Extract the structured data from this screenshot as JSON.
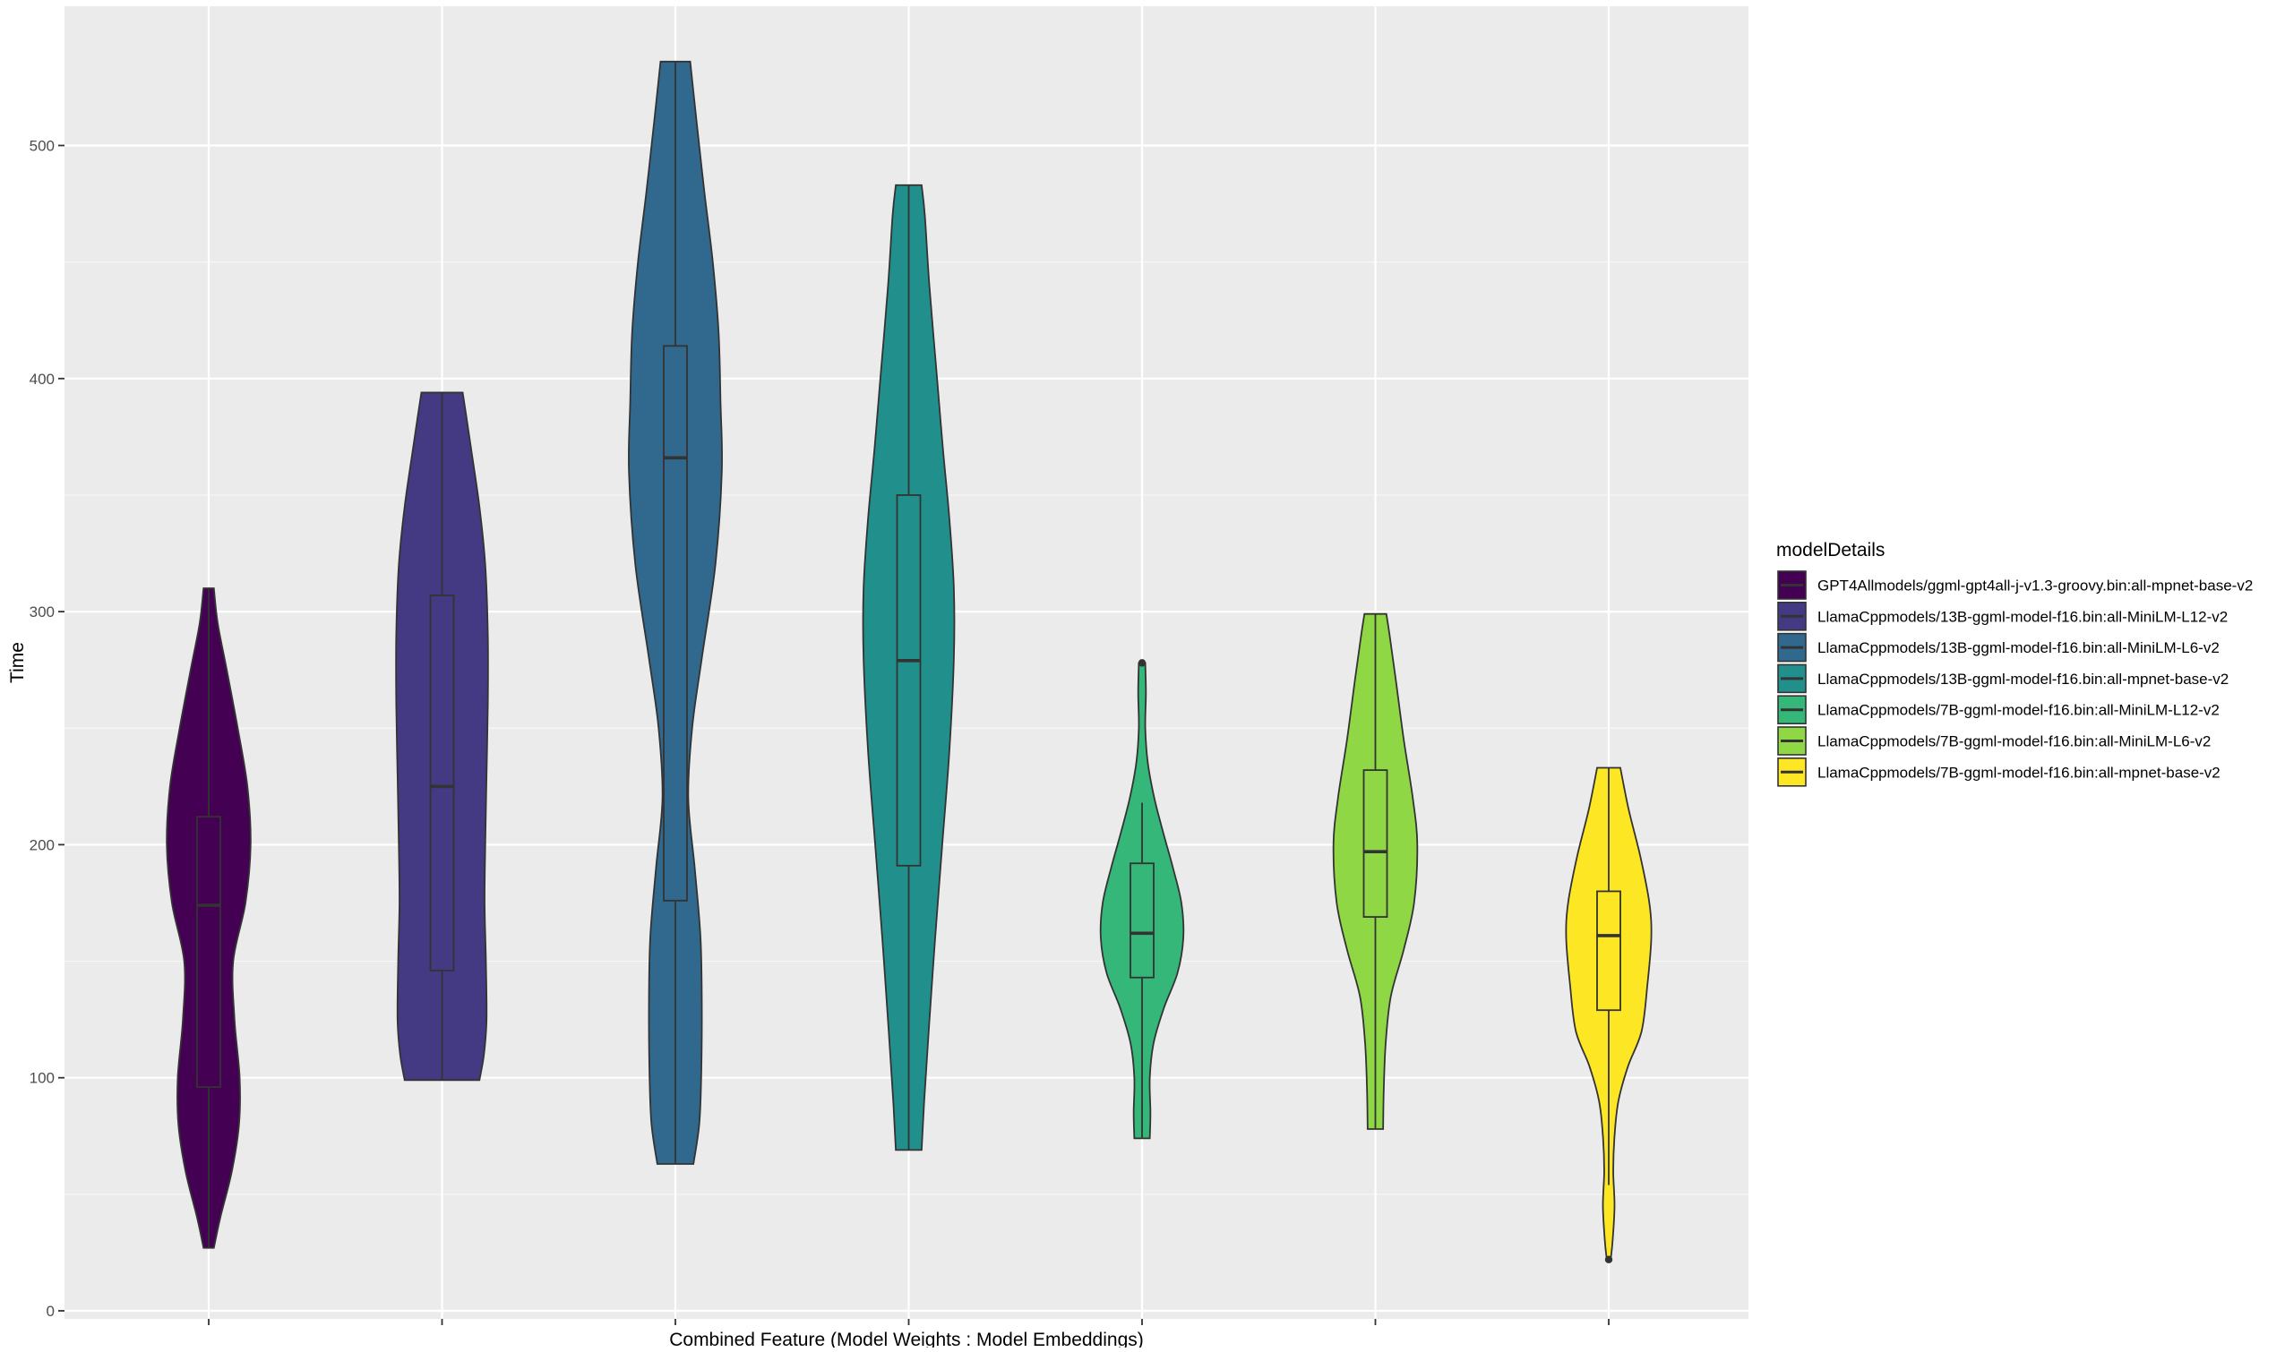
{
  "chart_data": {
    "type": "violin",
    "title": "",
    "xlabel": "Combined Feature (Model Weights : Model Embeddings)",
    "ylabel": "Time",
    "ylim": [
      -10,
      555
    ],
    "yticks": [
      0,
      100,
      200,
      300,
      400,
      500
    ],
    "grid": true,
    "legend_title": "modelDetails",
    "legend_position": "right",
    "series": [
      {
        "name": "GPT4Allmodels/ggml-gpt4all-j-v1.3-groovy.bin:all-mpnet-base-v2",
        "color": "#440154",
        "min": 27,
        "q1": 96,
        "median": 174,
        "q3": 212,
        "max": 310,
        "whisker_low": 27,
        "whisker_high": 310,
        "outliers": [],
        "density": [
          [
            27,
            8
          ],
          [
            40,
            18
          ],
          [
            60,
            36
          ],
          [
            80,
            47
          ],
          [
            100,
            48
          ],
          [
            125,
            40
          ],
          [
            150,
            38
          ],
          [
            175,
            57
          ],
          [
            200,
            65
          ],
          [
            225,
            60
          ],
          [
            250,
            45
          ],
          [
            275,
            28
          ],
          [
            295,
            14
          ],
          [
            310,
            8
          ]
        ]
      },
      {
        "name": "LlamaCppmodels/13B-ggml-model-f16.bin:all-MiniLM-L12-v2",
        "color": "#443A83",
        "min": 99,
        "q1": 146,
        "median": 225,
        "q3": 307,
        "max": 394,
        "whisker_low": 99,
        "whisker_high": 394,
        "outliers": [],
        "density": [
          [
            99,
            58
          ],
          [
            110,
            65
          ],
          [
            125,
            69
          ],
          [
            150,
            68
          ],
          [
            175,
            66
          ],
          [
            200,
            67
          ],
          [
            230,
            69
          ],
          [
            260,
            71
          ],
          [
            290,
            71
          ],
          [
            320,
            67
          ],
          [
            345,
            58
          ],
          [
            370,
            45
          ],
          [
            385,
            37
          ],
          [
            394,
            32
          ]
        ]
      },
      {
        "name": "LlamaCppmodels/13B-ggml-model-f16.bin:all-MiniLM-L6-v2",
        "color": "#31688E",
        "min": 63,
        "q1": 176,
        "median": 366,
        "q3": 414,
        "max": 536,
        "whisker_low": 63,
        "whisker_high": 536,
        "outliers": [],
        "density": [
          [
            63,
            28
          ],
          [
            80,
            37
          ],
          [
            100,
            40
          ],
          [
            130,
            41
          ],
          [
            160,
            39
          ],
          [
            190,
            30
          ],
          [
            220,
            20
          ],
          [
            250,
            26
          ],
          [
            280,
            41
          ],
          [
            320,
            62
          ],
          [
            360,
            72
          ],
          [
            390,
            70
          ],
          [
            420,
            67
          ],
          [
            450,
            58
          ],
          [
            480,
            45
          ],
          [
            510,
            33
          ],
          [
            536,
            23
          ]
        ]
      },
      {
        "name": "LlamaCppmodels/13B-ggml-model-f16.bin:all-mpnet-base-v2",
        "color": "#21908C",
        "min": 69,
        "q1": 191,
        "median": 279,
        "q3": 350,
        "max": 483,
        "whisker_low": 69,
        "whisker_high": 483,
        "outliers": [],
        "density": [
          [
            69,
            20
          ],
          [
            90,
            24
          ],
          [
            120,
            31
          ],
          [
            160,
            41
          ],
          [
            200,
            52
          ],
          [
            240,
            63
          ],
          [
            280,
            70
          ],
          [
            310,
            70
          ],
          [
            340,
            63
          ],
          [
            370,
            53
          ],
          [
            400,
            44
          ],
          [
            440,
            32
          ],
          [
            470,
            25
          ],
          [
            483,
            20
          ]
        ]
      },
      {
        "name": "LlamaCppmodels/7B-ggml-model-f16.bin:all-MiniLM-L12-v2",
        "color": "#35B779",
        "min": 74,
        "q1": 143,
        "median": 162,
        "q3": 192,
        "max": 278,
        "whisker_low": 74,
        "whisker_high": 218,
        "outliers": [
          278
        ],
        "density": [
          [
            74,
            12
          ],
          [
            85,
            13
          ],
          [
            100,
            12
          ],
          [
            115,
            18
          ],
          [
            130,
            34
          ],
          [
            145,
            55
          ],
          [
            160,
            64
          ],
          [
            175,
            61
          ],
          [
            190,
            48
          ],
          [
            205,
            33
          ],
          [
            220,
            19
          ],
          [
            235,
            9
          ],
          [
            250,
            5
          ],
          [
            265,
            6
          ],
          [
            278,
            5
          ]
        ]
      },
      {
        "name": "LlamaCppmodels/7B-ggml-model-f16.bin:all-MiniLM-L6-v2",
        "color": "#8FD744",
        "min": 78,
        "q1": 169,
        "median": 197,
        "q3": 232,
        "max": 299,
        "whisker_low": 78,
        "whisker_high": 299,
        "outliers": [],
        "density": [
          [
            78,
            12
          ],
          [
            95,
            13
          ],
          [
            115,
            16
          ],
          [
            135,
            24
          ],
          [
            155,
            44
          ],
          [
            175,
            60
          ],
          [
            200,
            65
          ],
          [
            220,
            58
          ],
          [
            245,
            44
          ],
          [
            270,
            32
          ],
          [
            290,
            22
          ],
          [
            299,
            17
          ]
        ]
      },
      {
        "name": "LlamaCppmodels/7B-ggml-model-f16.bin:all-mpnet-base-v2",
        "color": "#FDE725",
        "min": 22,
        "q1": 129,
        "median": 161,
        "q3": 180,
        "max": 233,
        "whisker_low": 54,
        "whisker_high": 233,
        "outliers": [
          22
        ],
        "density": [
          [
            22,
            3
          ],
          [
            30,
            6
          ],
          [
            45,
            9
          ],
          [
            60,
            7
          ],
          [
            75,
            9
          ],
          [
            90,
            15
          ],
          [
            105,
            30
          ],
          [
            120,
            51
          ],
          [
            140,
            60
          ],
          [
            160,
            66
          ],
          [
            175,
            63
          ],
          [
            195,
            49
          ],
          [
            215,
            31
          ],
          [
            233,
            18
          ]
        ]
      }
    ]
  }
}
